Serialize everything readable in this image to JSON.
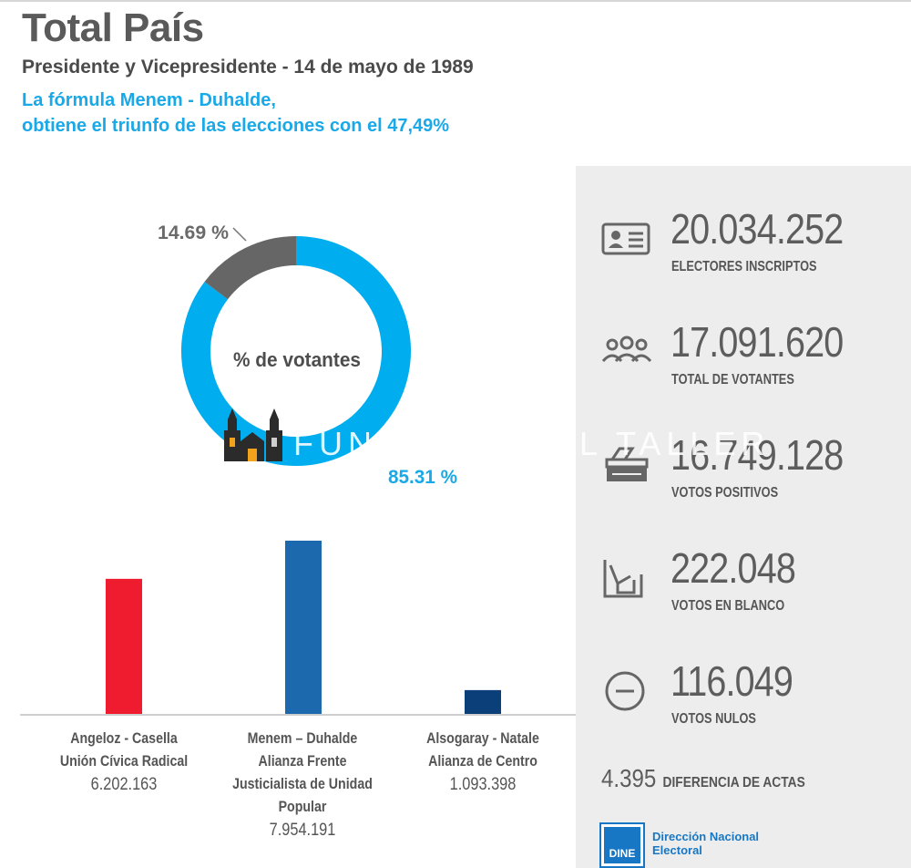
{
  "header": {
    "title": "Total País",
    "subtitle": "Presidente y Vicepresidente - 14 de mayo de 1989",
    "headline_line1": "La fórmula Menem - Duhalde,",
    "headline_line2": "obtiene el triunfo de las elecciones con el 47,49%"
  },
  "chart_data": [
    {
      "type": "pie",
      "center_label": "% de votantes",
      "slices": [
        {
          "label": "85.31 %",
          "value": 85.31,
          "color": "#00adef"
        },
        {
          "label": "14.69 %",
          "value": 14.69,
          "color": "#666666"
        }
      ]
    },
    {
      "type": "bar",
      "categories": [
        [
          "Angeloz - Casella",
          "Unión Cívica Radical"
        ],
        [
          "Menem – Duhalde",
          "Alianza Frente",
          "Justicialista de Unidad",
          "Popular"
        ],
        [
          "Alsogaray - Natale",
          "Alianza de Centro"
        ]
      ],
      "values": [
        6202163,
        7954191,
        1093398
      ],
      "value_labels": [
        "6.202.163",
        "7.954.191",
        "1.093.398"
      ],
      "colors": [
        "#ef1b2e",
        "#1d69ad",
        "#0a3f7a"
      ],
      "title": "",
      "xlabel": "",
      "ylabel": ""
    }
  ],
  "stats": [
    {
      "icon": "id-card-icon",
      "value": "20.034.252",
      "label": "ELECTORES INSCRIPTOS"
    },
    {
      "icon": "people-group-icon",
      "value": "17.091.620",
      "label": "TOTAL DE VOTANTES"
    },
    {
      "icon": "ballot-box-icon",
      "value": "16.749.128",
      "label": "VOTOS POSITIVOS"
    },
    {
      "icon": "blank-vote-icon",
      "value": "222.048",
      "label": "VOTOS EN BLANCO"
    },
    {
      "icon": "minus-circle-icon",
      "value": "116.049",
      "label": "VOTOS NULOS"
    }
  ],
  "actas": {
    "value": "4.395",
    "label": "DIFERENCIA DE ACTAS"
  },
  "logo": {
    "box_text": "DINE",
    "line1": "Dirección Nacional",
    "line2": "Electoral",
    "color": "#1877c4"
  },
  "watermark": {
    "text": "FUNDACIÓN EL TALLER"
  }
}
